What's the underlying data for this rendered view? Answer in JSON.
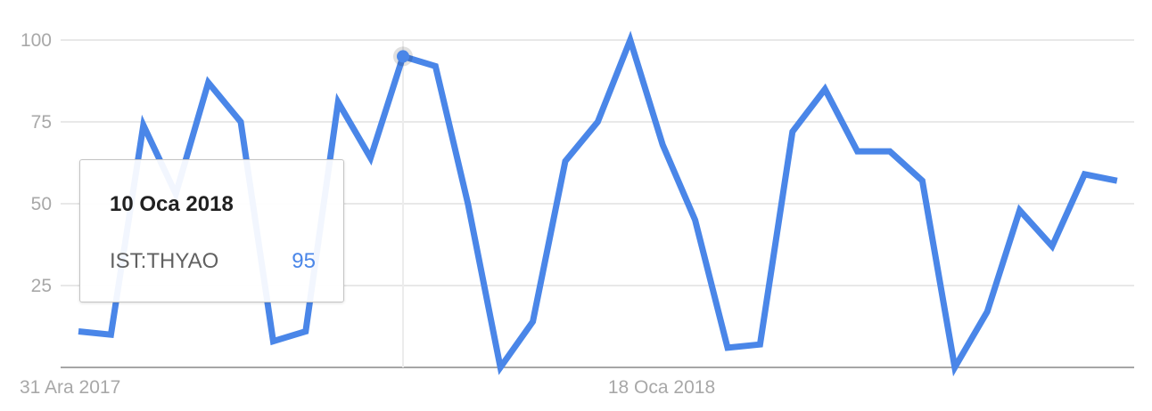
{
  "chart_data": {
    "type": "line",
    "x_labels": [
      "31 Ara 2017",
      "18 Oca 2018"
    ],
    "y_ticks": [
      "100",
      "75",
      "50",
      "25"
    ],
    "ylim": [
      0,
      100
    ],
    "grid": true,
    "series": [
      {
        "name": "IST:THYAO",
        "color": "#4a86e8",
        "values": [
          11,
          10,
          74,
          53,
          87,
          75,
          8,
          11,
          81,
          64,
          95,
          92,
          50,
          0,
          14,
          63,
          75,
          100,
          68,
          45,
          6,
          7,
          72,
          85,
          66,
          66,
          57,
          0,
          17,
          48,
          37,
          59,
          57
        ]
      }
    ],
    "highlight": {
      "index": 10
    }
  },
  "tooltip": {
    "date": "10 Oca 2018",
    "series_name": "IST:THYAO",
    "value": "95"
  }
}
